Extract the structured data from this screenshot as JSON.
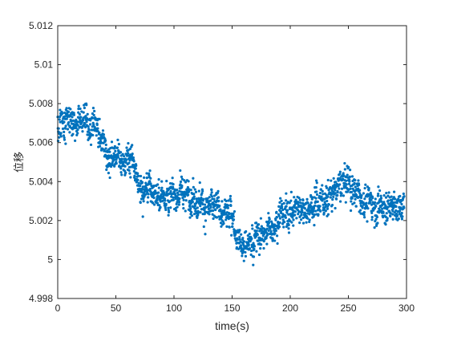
{
  "chart_data": {
    "type": "scatter",
    "title": "",
    "xlabel": "time(s)",
    "ylabel": "位移",
    "xlim": [
      0,
      300
    ],
    "ylim": [
      4.998,
      5.012
    ],
    "x_ticks": [
      0,
      50,
      100,
      150,
      200,
      250,
      300
    ],
    "x_tick_labels": [
      "0",
      "50",
      "100",
      "150",
      "200",
      "250",
      "300"
    ],
    "y_ticks": [
      4.998,
      5.0,
      5.002,
      5.004,
      5.006,
      5.008,
      5.01,
      5.012
    ],
    "y_tick_labels": [
      "4.998",
      "5",
      "5.002",
      "5.004",
      "5.006",
      "5.008",
      "5.01",
      "5.012"
    ],
    "grid": false,
    "legend": "none",
    "marker_color": "#0072BD",
    "trend": {
      "x": [
        0,
        10,
        20,
        30,
        40,
        50,
        60,
        70,
        80,
        90,
        100,
        110,
        120,
        130,
        140,
        150,
        160,
        170,
        180,
        190,
        200,
        210,
        220,
        230,
        240,
        250,
        260,
        270,
        280,
        290,
        298
      ],
      "y": [
        5.0068,
        5.0072,
        5.0071,
        5.0066,
        5.0058,
        5.0053,
        5.0051,
        5.0036,
        5.0036,
        5.0033,
        5.0034,
        5.0032,
        5.0033,
        5.0026,
        5.0024,
        5.0022,
        5.0007,
        5.0012,
        5.0014,
        5.0023,
        5.0024,
        5.0027,
        5.0029,
        5.0031,
        5.0036,
        5.004,
        5.0031,
        5.0029,
        5.0028,
        5.0027,
        5.0028
      ]
    },
    "band_halfwidth": 0.00065,
    "point_count": 1800
  }
}
